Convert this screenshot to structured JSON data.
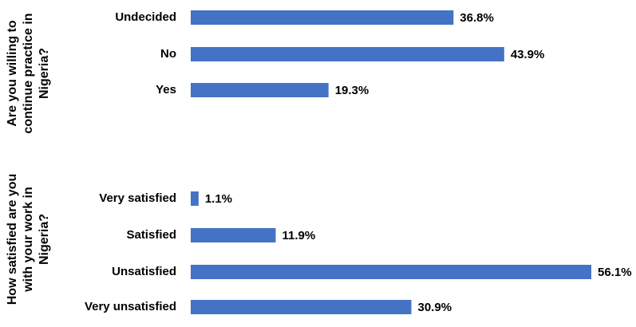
{
  "chart_data": {
    "type": "bar",
    "orientation": "horizontal",
    "unit": "%",
    "bar_color": "#4472C4",
    "xlim": [
      0,
      56.1
    ],
    "groups": [
      {
        "title": [
          "Are you willing to",
          "continue practice in",
          "Nigeria?"
        ],
        "categories": [
          "Undecided",
          "No",
          "Yes"
        ],
        "values": [
          36.8,
          43.9,
          19.3
        ],
        "labels": [
          "36.8%",
          "43.9%",
          "19.3%"
        ]
      },
      {
        "title": [
          "How satisfied are you",
          "with your work in",
          "Nigeria?"
        ],
        "categories": [
          "Very satisfied",
          "Satisfied",
          "Unsatisfied",
          "Very unsatisfied"
        ],
        "values": [
          1.1,
          11.9,
          56.1,
          30.9
        ],
        "labels": [
          "1.1%",
          "11.9%",
          "56.1%",
          "30.9%"
        ]
      }
    ]
  }
}
